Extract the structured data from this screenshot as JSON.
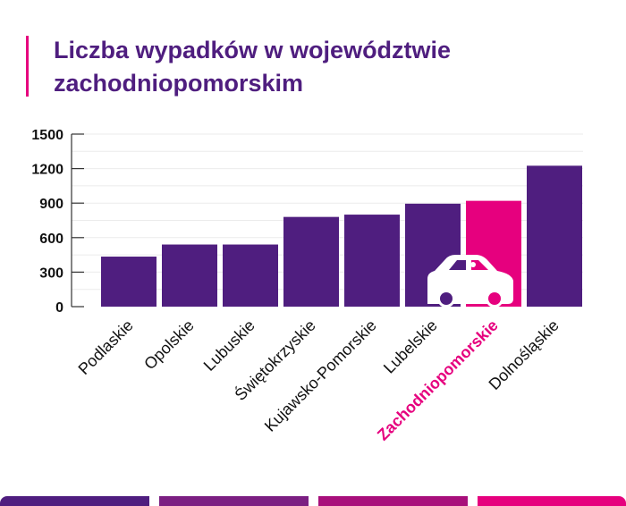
{
  "chart_data": {
    "type": "bar",
    "title": "Liczba wypadków w województwie zachodniopomorskim",
    "xlabel": "",
    "ylabel": "",
    "categories": [
      "Podlaskie",
      "Opolskie",
      "Lubuskie",
      "Świętokrzyskie",
      "Kujawsko-Pomorskie",
      "Lubelskie",
      "Zachodniopomorskie",
      "Dolnośląskie"
    ],
    "values": [
      435,
      540,
      540,
      780,
      800,
      895,
      920,
      1225
    ],
    "highlight": "Zachodniopomorskie",
    "ylim": [
      0,
      1500
    ],
    "yticks": [
      "0",
      "300",
      "600",
      "900",
      "1200",
      "1500"
    ],
    "grid": true,
    "colors": {
      "bar": "#4f1e7f",
      "highlight": "#e6007e",
      "title": "#4f1e7f"
    },
    "icon": "car-icon"
  },
  "footer_colors": [
    "#4f1e7f",
    "#7b1f82",
    "#a80f7b",
    "#e6007e"
  ]
}
